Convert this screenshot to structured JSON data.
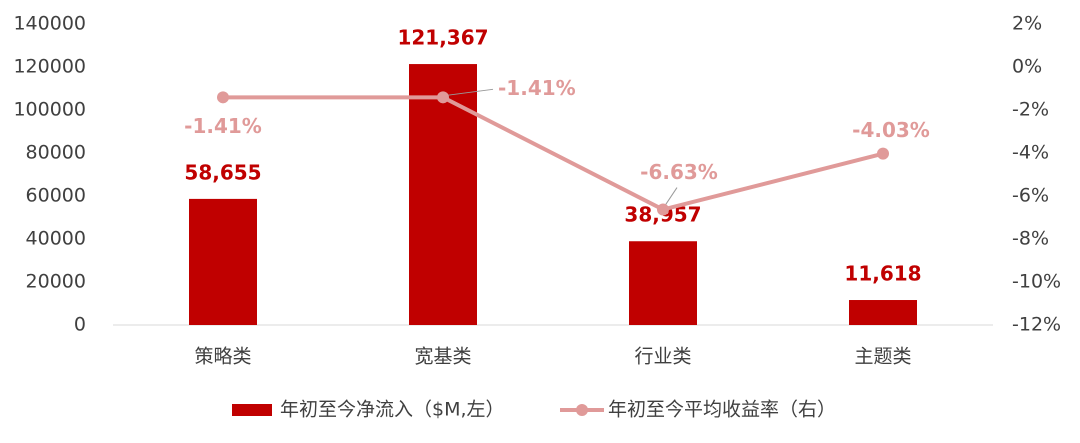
{
  "chart_data": {
    "type": "bar",
    "categories": [
      "策略类",
      "宽基类",
      "行业类",
      "主题类"
    ],
    "series": [
      {
        "name": "年初至今净流入（$M,左）",
        "type": "bar",
        "color": "#c00000",
        "values": [
          58655,
          121367,
          38957,
          11618
        ],
        "value_labels": [
          "58,655",
          "121,367",
          "38,957",
          "11,618"
        ]
      },
      {
        "name": "年初至今平均收益率（右）",
        "type": "line",
        "axis": "y2",
        "color": "#e09a99",
        "values": [
          -1.41,
          -1.41,
          -6.63,
          -4.03
        ],
        "value_labels": [
          "-1.41%",
          "-1.41%",
          "-6.63%",
          "-4.03%"
        ]
      }
    ],
    "ylim": [
      0,
      140000
    ],
    "yticks": [
      0,
      20000,
      40000,
      60000,
      80000,
      100000,
      120000,
      140000
    ],
    "y2lim": [
      -12,
      2
    ],
    "y2ticks": [
      {
        "value": -12,
        "label": "-12%"
      },
      {
        "value": -10,
        "label": "-10%"
      },
      {
        "value": -8,
        "label": "-8%"
      },
      {
        "value": -6,
        "label": "-6%"
      },
      {
        "value": -4,
        "label": "-4%"
      },
      {
        "value": -2,
        "label": "-2%"
      },
      {
        "value": 0,
        "label": "0%"
      },
      {
        "value": 2,
        "label": "2%"
      }
    ],
    "grid": false,
    "legend": "bottom"
  }
}
